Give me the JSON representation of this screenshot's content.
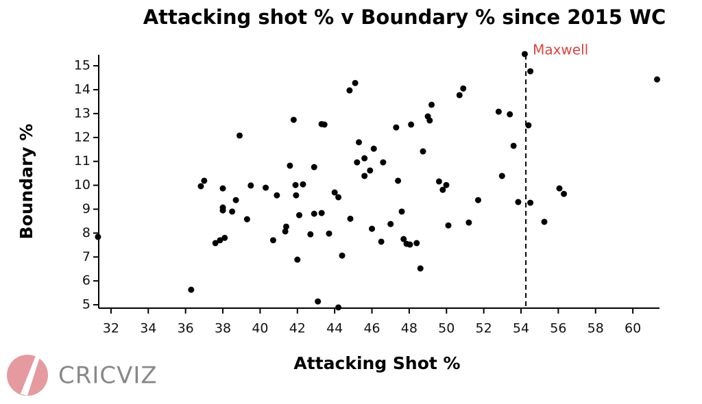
{
  "chart_data": {
    "type": "scatter",
    "title": "Attacking shot % v Boundary % since 2015 WC",
    "x_label": "Attacking Shot %",
    "y_label": "Boundary %",
    "color": "#000000",
    "xlim": [
      31.34,
      61.43
    ],
    "ylim": [
      4.86,
      15.46
    ],
    "xticks": [
      32,
      34,
      36,
      38,
      40,
      42,
      44,
      46,
      48,
      50,
      52,
      54,
      56,
      58,
      60
    ],
    "yticks": [
      5,
      6,
      7,
      8,
      9,
      10,
      11,
      12,
      13,
      14,
      15
    ],
    "annotations": [
      {
        "text": "Maxwell",
        "x": 54.26
      }
    ],
    "x": [
      31.3,
      36.3,
      36.82,
      37.0,
      37.6,
      37.85,
      38.1,
      38.0,
      38.0,
      38.0,
      38.5,
      38.7,
      38.9,
      39.3,
      39.5,
      40.3,
      40.7,
      40.9,
      41.35,
      41.4,
      41.6,
      41.8,
      41.9,
      41.93,
      42.0,
      42.1,
      42.3,
      42.7,
      42.9,
      42.9,
      43.1,
      43.3,
      43.3,
      43.45,
      43.7,
      44.0,
      44.2,
      44.2,
      44.4,
      44.8,
      44.84,
      45.1,
      45.2,
      45.3,
      45.6,
      45.6,
      45.9,
      46.0,
      46.1,
      46.5,
      46.6,
      47.0,
      47.3,
      47.4,
      47.6,
      47.7,
      47.86,
      48.04,
      48.1,
      48.4,
      48.6,
      48.74,
      49.0,
      49.1,
      49.2,
      49.6,
      49.8,
      49.99,
      50.1,
      50.7,
      50.9,
      51.2,
      51.7,
      52.8,
      52.98,
      53.4,
      53.6,
      53.85,
      54.2,
      54.4,
      54.5,
      54.5,
      55.25,
      56.06,
      56.3,
      61.3
    ],
    "values": [
      7.84,
      5.63,
      9.96,
      10.19,
      7.58,
      7.7,
      7.8,
      9.87,
      9.07,
      8.95,
      8.9,
      9.38,
      12.08,
      8.58,
      9.99,
      9.9,
      7.7,
      9.58,
      8.07,
      8.27,
      10.82,
      12.74,
      10.01,
      9.58,
      6.89,
      8.75,
      10.04,
      7.95,
      10.76,
      8.81,
      5.14,
      8.84,
      12.56,
      12.54,
      7.98,
      9.7,
      9.5,
      4.89,
      7.06,
      13.97,
      8.6,
      14.28,
      10.96,
      11.8,
      11.13,
      10.39,
      10.62,
      8.18,
      11.53,
      7.64,
      10.96,
      8.38,
      12.42,
      10.19,
      8.9,
      7.75,
      7.55,
      7.52,
      12.54,
      7.58,
      6.52,
      11.42,
      12.88,
      12.71,
      13.37,
      10.16,
      9.81,
      10.01,
      8.32,
      13.77,
      14.05,
      8.44,
      9.38,
      13.08,
      10.39,
      12.97,
      11.65,
      9.3,
      15.49,
      12.51,
      14.77,
      9.27,
      8.47,
      9.87,
      9.64,
      14.43
    ]
  },
  "logo": {
    "text": "CRICVIZ"
  }
}
